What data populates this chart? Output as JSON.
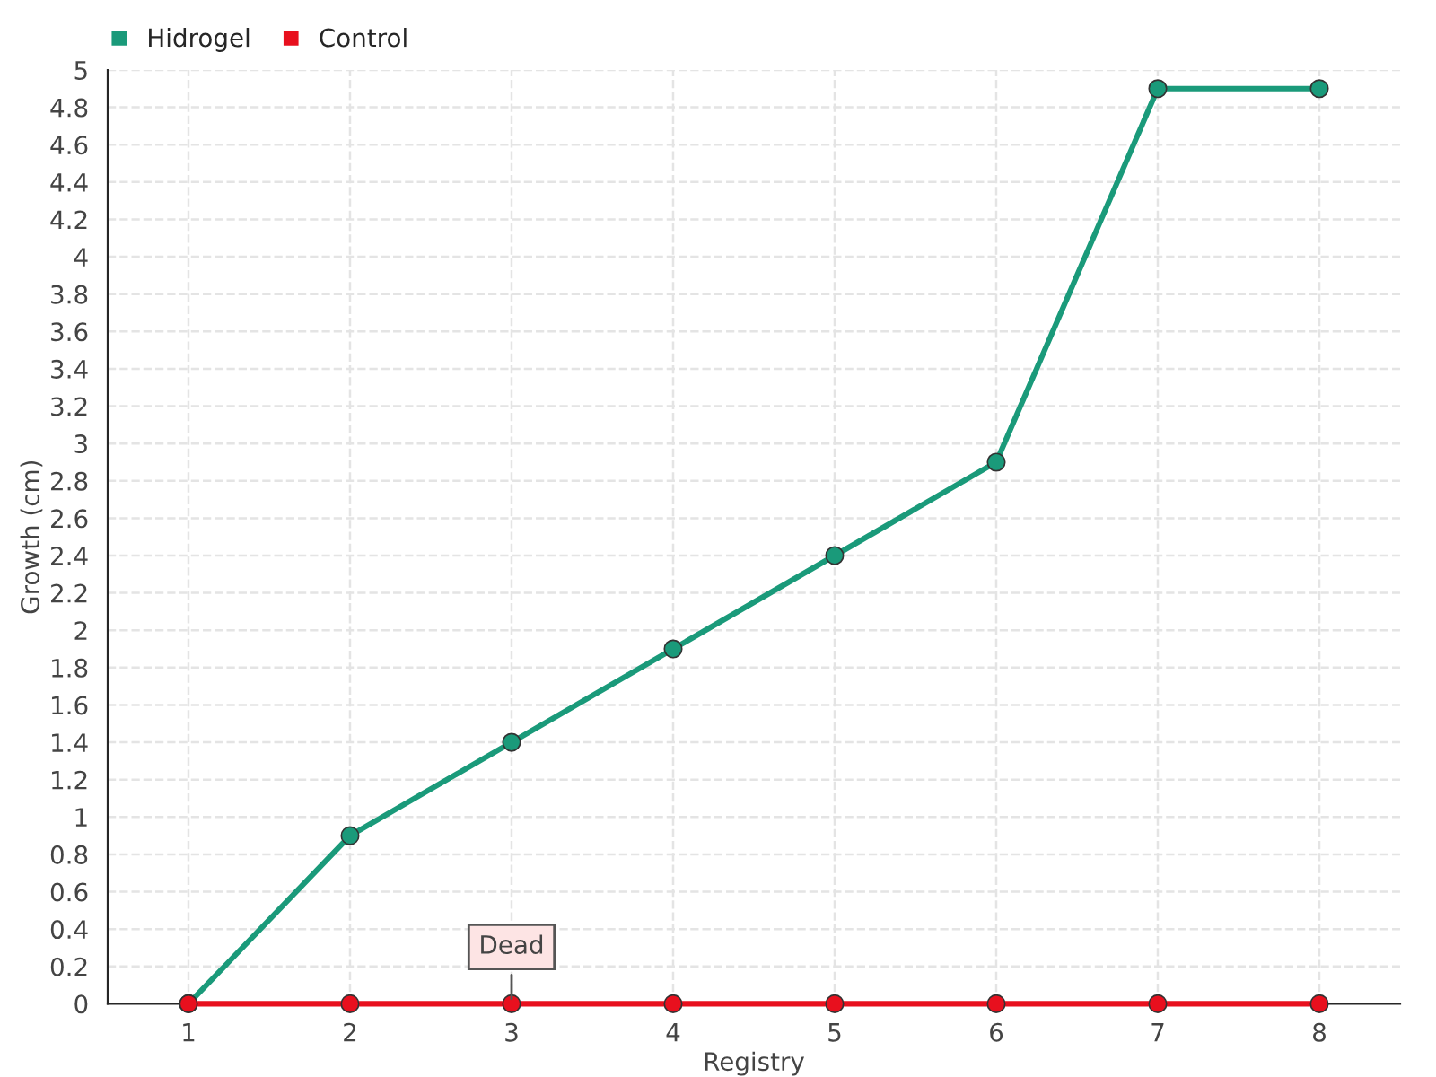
{
  "chart_data": {
    "type": "line",
    "xlabel": "Registry",
    "ylabel": "Growth (cm)",
    "categories": [
      "1",
      "2",
      "3",
      "4",
      "5",
      "6",
      "7",
      "8"
    ],
    "series": [
      {
        "name": "Hidrogel",
        "color": "#1a9a7a",
        "values": [
          0,
          0.9,
          1.4,
          1.9,
          2.4,
          2.9,
          4.9,
          4.9
        ]
      },
      {
        "name": "Control",
        "color": "#e8101e",
        "values": [
          0,
          0,
          0,
          0,
          0,
          0,
          0,
          0
        ]
      }
    ],
    "ylim": [
      0,
      5
    ],
    "yticks": [
      0,
      0.2,
      0.4,
      0.6,
      0.8,
      1,
      1.2,
      1.4,
      1.6,
      1.8,
      2,
      2.2,
      2.4,
      2.6,
      2.8,
      3,
      3.2,
      3.4,
      3.6,
      3.8,
      4,
      4.2,
      4.4,
      4.6,
      4.8,
      5
    ],
    "annotations": [
      {
        "text": "Dead",
        "x": "3",
        "y": 0
      }
    ],
    "grid": true,
    "legend": "top left",
    "marker": "circle",
    "line_style": "solid"
  }
}
